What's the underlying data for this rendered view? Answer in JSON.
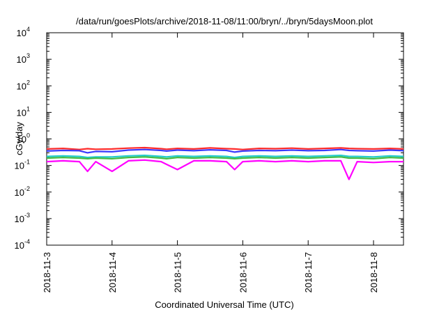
{
  "chart_data": {
    "type": "line",
    "title": "/data/run/goesPlots/archive/2018-11-08/11:00/bryn/../bryn/5daysMoon.plot",
    "xlabel": "Coordinated Universal Time (UTC)",
    "ylabel": "cGy/day",
    "yscale": "log",
    "ylim": [
      0.0001,
      10000
    ],
    "xlim": [
      "2018-11-03T00:00",
      "2018-11-08T11:00"
    ],
    "grid": false,
    "legend": "none",
    "x_ticks": [
      {
        "label": "2018-11-3",
        "at": "2018-11-03T00:00"
      },
      {
        "label": "2018-11-4",
        "at": "2018-11-04T00:00"
      },
      {
        "label": "2018-11-5",
        "at": "2018-11-05T00:00"
      },
      {
        "label": "2018-11-6",
        "at": "2018-11-06T00:00"
      },
      {
        "label": "2018-11-7",
        "at": "2018-11-07T00:00"
      },
      {
        "label": "2018-11-8",
        "at": "2018-11-08T00:00"
      }
    ],
    "y_ticks": [
      {
        "base": "10",
        "exp": "-4",
        "value": 0.0001
      },
      {
        "base": "10",
        "exp": "-3",
        "value": 0.001
      },
      {
        "base": "10",
        "exp": "-2",
        "value": 0.01
      },
      {
        "base": "10",
        "exp": "-1",
        "value": 0.1
      },
      {
        "base": "10",
        "exp": "0",
        "value": 1
      },
      {
        "base": "10",
        "exp": "1",
        "value": 10
      },
      {
        "base": "10",
        "exp": "2",
        "value": 100
      },
      {
        "base": "10",
        "exp": "3",
        "value": 1000
      },
      {
        "base": "10",
        "exp": "4",
        "value": 10000
      }
    ],
    "x_dates": [
      "2018-11-03T00:00",
      "2018-11-03T06:00",
      "2018-11-03T12:00",
      "2018-11-03T15:00",
      "2018-11-03T18:00",
      "2018-11-04T00:00",
      "2018-11-04T06:00",
      "2018-11-04T12:00",
      "2018-11-04T18:00",
      "2018-11-04T20:00",
      "2018-11-05T00:00",
      "2018-11-05T06:00",
      "2018-11-05T12:00",
      "2018-11-05T18:00",
      "2018-11-05T21:00",
      "2018-11-06T00:00",
      "2018-11-06T06:00",
      "2018-11-06T12:00",
      "2018-11-06T18:00",
      "2018-11-07T00:00",
      "2018-11-07T06:00",
      "2018-11-07T12:00",
      "2018-11-07T15:00",
      "2018-11-07T18:00",
      "2018-11-08T00:00",
      "2018-11-08T06:00",
      "2018-11-08T11:00"
    ],
    "series": [
      {
        "color": "#ff2a2a",
        "values": [
          0.42,
          0.44,
          0.4,
          0.43,
          0.41,
          0.42,
          0.45,
          0.47,
          0.43,
          0.41,
          0.44,
          0.42,
          0.46,
          0.43,
          0.42,
          0.4,
          0.44,
          0.43,
          0.45,
          0.42,
          0.44,
          0.46,
          0.44,
          0.43,
          0.42,
          0.44,
          0.42
        ]
      },
      {
        "color": "#3a3aff",
        "values": [
          0.35,
          0.37,
          0.36,
          0.3,
          0.34,
          0.33,
          0.38,
          0.4,
          0.37,
          0.35,
          0.38,
          0.36,
          0.39,
          0.37,
          0.32,
          0.35,
          0.37,
          0.36,
          0.38,
          0.36,
          0.37,
          0.4,
          0.37,
          0.36,
          0.35,
          0.38,
          0.36
        ]
      },
      {
        "color": "#22cccc",
        "values": [
          0.22,
          0.23,
          0.22,
          0.2,
          0.21,
          0.21,
          0.23,
          0.24,
          0.22,
          0.21,
          0.23,
          0.22,
          0.23,
          0.22,
          0.2,
          0.22,
          0.23,
          0.22,
          0.23,
          0.22,
          0.23,
          0.24,
          0.22,
          0.22,
          0.21,
          0.23,
          0.22
        ]
      },
      {
        "color": "#44bb44",
        "values": [
          0.19,
          0.2,
          0.19,
          0.18,
          0.19,
          0.18,
          0.2,
          0.21,
          0.19,
          0.18,
          0.2,
          0.19,
          0.2,
          0.19,
          0.18,
          0.19,
          0.2,
          0.19,
          0.2,
          0.19,
          0.2,
          0.21,
          0.19,
          0.19,
          0.18,
          0.2,
          0.19
        ]
      },
      {
        "color": "#ff00ff",
        "values": [
          0.14,
          0.15,
          0.14,
          0.06,
          0.14,
          0.06,
          0.15,
          0.16,
          0.14,
          0.11,
          0.07,
          0.15,
          0.15,
          0.14,
          0.07,
          0.14,
          0.15,
          0.14,
          0.15,
          0.14,
          0.15,
          0.15,
          0.03,
          0.14,
          0.13,
          0.14,
          0.14
        ]
      }
    ]
  }
}
